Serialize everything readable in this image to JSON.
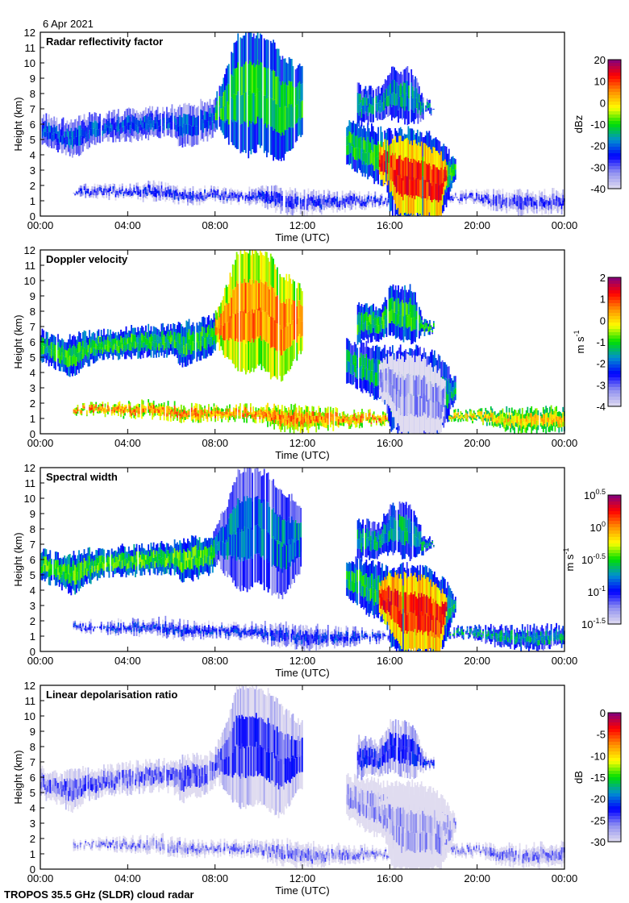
{
  "date": "6 Apr 2021",
  "footer": "TROPOS 35.5 GHz (SLDR) cloud radar",
  "chart_data": {
    "type": "heatmap",
    "xlabel": "Time (UTC)",
    "ylabel": "Height (km)",
    "xlim_hours": [
      0,
      24
    ],
    "ylim": [
      0,
      12
    ],
    "x_ticks": [
      "00:00",
      "04:00",
      "08:00",
      "12:00",
      "16:00",
      "20:00",
      "00:00"
    ],
    "y_ticks": [
      "0",
      "1",
      "2",
      "3",
      "4",
      "5",
      "6",
      "7",
      "8",
      "9",
      "10",
      "11",
      "12"
    ],
    "colormap": [
      "#e0dcf0",
      "#9090f0",
      "#0000ff",
      "#0090d0",
      "#00e000",
      "#ffff00",
      "#ff9000",
      "#ff0000",
      "#800080"
    ],
    "cloud_features": [
      {
        "id": "mid-level-layer",
        "profile": [
          [
            0,
            4.8,
            6.6
          ],
          [
            0.5,
            4.5,
            6.3
          ],
          [
            1,
            4.2,
            6.2
          ],
          [
            1.5,
            3.8,
            6.3
          ],
          [
            2,
            4.5,
            6.5
          ],
          [
            3,
            5,
            6.6
          ],
          [
            4,
            5,
            6.8
          ],
          [
            5,
            5.2,
            6.9
          ],
          [
            6,
            5.2,
            7
          ],
          [
            6.5,
            4.5,
            7.2
          ],
          [
            7,
            4.8,
            7.3
          ],
          [
            7.5,
            5,
            7.4
          ],
          [
            8,
            5.5,
            7.6
          ]
        ]
      },
      {
        "id": "deep-cloud",
        "profile": [
          [
            8,
            6,
            8
          ],
          [
            8.5,
            5,
            9.5
          ],
          [
            9,
            4.2,
            11.8
          ],
          [
            9.5,
            4,
            12
          ],
          [
            10,
            4.5,
            11.8
          ],
          [
            10.5,
            3.8,
            11.5
          ],
          [
            11,
            3.5,
            10.5
          ],
          [
            11.5,
            4.5,
            10
          ],
          [
            12,
            5.5,
            9.5
          ]
        ]
      },
      {
        "id": "boundary-layer",
        "profile": [
          [
            1.5,
            1.4,
            1.8
          ],
          [
            3,
            1.3,
            1.9
          ],
          [
            4,
            1.2,
            1.9
          ],
          [
            5.5,
            1.1,
            2.1
          ],
          [
            6.5,
            0.9,
            1.8
          ],
          [
            8,
            1,
            1.7
          ],
          [
            10,
            0.9,
            1.7
          ],
          [
            11,
            0.3,
            1.8
          ],
          [
            12,
            0.2,
            1.6
          ],
          [
            14,
            0.5,
            1.4
          ],
          [
            16,
            0.8,
            1.3
          ]
        ]
      },
      {
        "id": "late-boundary-layer",
        "profile": [
          [
            18.5,
            1,
            1.4
          ],
          [
            20,
            0.9,
            1.5
          ],
          [
            21,
            0.4,
            1.5
          ],
          [
            22,
            0.2,
            1.5
          ],
          [
            24,
            0.3,
            1.6
          ]
        ]
      },
      {
        "id": "afternoon-cloud",
        "profile": [
          [
            14,
            3.5,
            6
          ],
          [
            15,
            2.5,
            5.8
          ],
          [
            15.8,
            2,
            5.5
          ],
          [
            16,
            0.3,
            5.5
          ],
          [
            16.3,
            0,
            5.5
          ],
          [
            17,
            0,
            5.6
          ],
          [
            18,
            0,
            5.2
          ],
          [
            18.5,
            0.5,
            4.5
          ],
          [
            19,
            2.5,
            3.5
          ]
        ]
      },
      {
        "id": "afternoon-upper",
        "profile": [
          [
            14.5,
            6,
            8.5
          ],
          [
            15.5,
            6.2,
            8.2
          ],
          [
            16,
            6.5,
            9.5
          ],
          [
            17,
            6,
            9.5
          ],
          [
            17.5,
            6.5,
            7.5
          ],
          [
            18,
            6.8,
            7.2
          ]
        ]
      },
      {
        "id": "precipitation-core",
        "profile": [
          [
            15.5,
            2.5,
            4.5
          ],
          [
            16,
            1.5,
            5
          ],
          [
            16.5,
            0,
            5
          ],
          [
            17.5,
            0,
            4.8
          ],
          [
            18.3,
            0,
            4
          ],
          [
            18.6,
            2.5,
            3.5
          ]
        ]
      }
    ],
    "panels": [
      {
        "title": "Radar reflectivity factor",
        "unit": "dBz",
        "unit_sup": "",
        "range": [
          -40,
          20
        ],
        "log": false,
        "cb_ticks": [
          "20",
          "10",
          "0",
          "-10",
          "-20",
          "-30",
          "-40"
        ],
        "cb_tick_values": [
          20,
          10,
          0,
          -10,
          -20,
          -30,
          -40
        ],
        "feature_values": [
          -25,
          -15,
          -30,
          -32,
          -15,
          -20,
          8
        ]
      },
      {
        "title": "Doppler velocity",
        "unit": "m s",
        "unit_sup": "-1",
        "range": [
          -4,
          2
        ],
        "log": false,
        "cb_ticks": [
          "2",
          "1",
          "0",
          "-1",
          "-2",
          "-3",
          "-4"
        ],
        "cb_tick_values": [
          2,
          1,
          0,
          -1,
          -2,
          -3,
          -4
        ],
        "feature_values": [
          -1.5,
          0.2,
          0.2,
          -0.3,
          -1.8,
          -1.5,
          -3.8
        ]
      },
      {
        "title": "Spectral width",
        "unit": "m s",
        "unit_sup": "-1",
        "range": [
          -1.5,
          0.5
        ],
        "log": true,
        "cb_ticks": [
          "0.5",
          "0",
          "-0.5",
          "-1",
          "-1.5"
        ],
        "cb_tick_values": [
          0.5,
          0,
          -0.5,
          -1,
          -1.5
        ],
        "feature_values": [
          -0.6,
          -0.9,
          -1.1,
          -0.8,
          -0.7,
          -0.8,
          0.1
        ]
      },
      {
        "title": "Linear depolarisation ratio",
        "unit": "dB",
        "unit_sup": "",
        "range": [
          -30,
          0
        ],
        "log": false,
        "cb_ticks": [
          "0",
          "-5",
          "-10",
          "-15",
          "-20",
          "-25",
          "-30"
        ],
        "cb_tick_values": [
          0,
          -5,
          -10,
          -15,
          -20,
          -25,
          -30
        ],
        "feature_values": [
          -27,
          -26,
          -28,
          -28,
          -29,
          -25,
          -29
        ]
      }
    ]
  }
}
